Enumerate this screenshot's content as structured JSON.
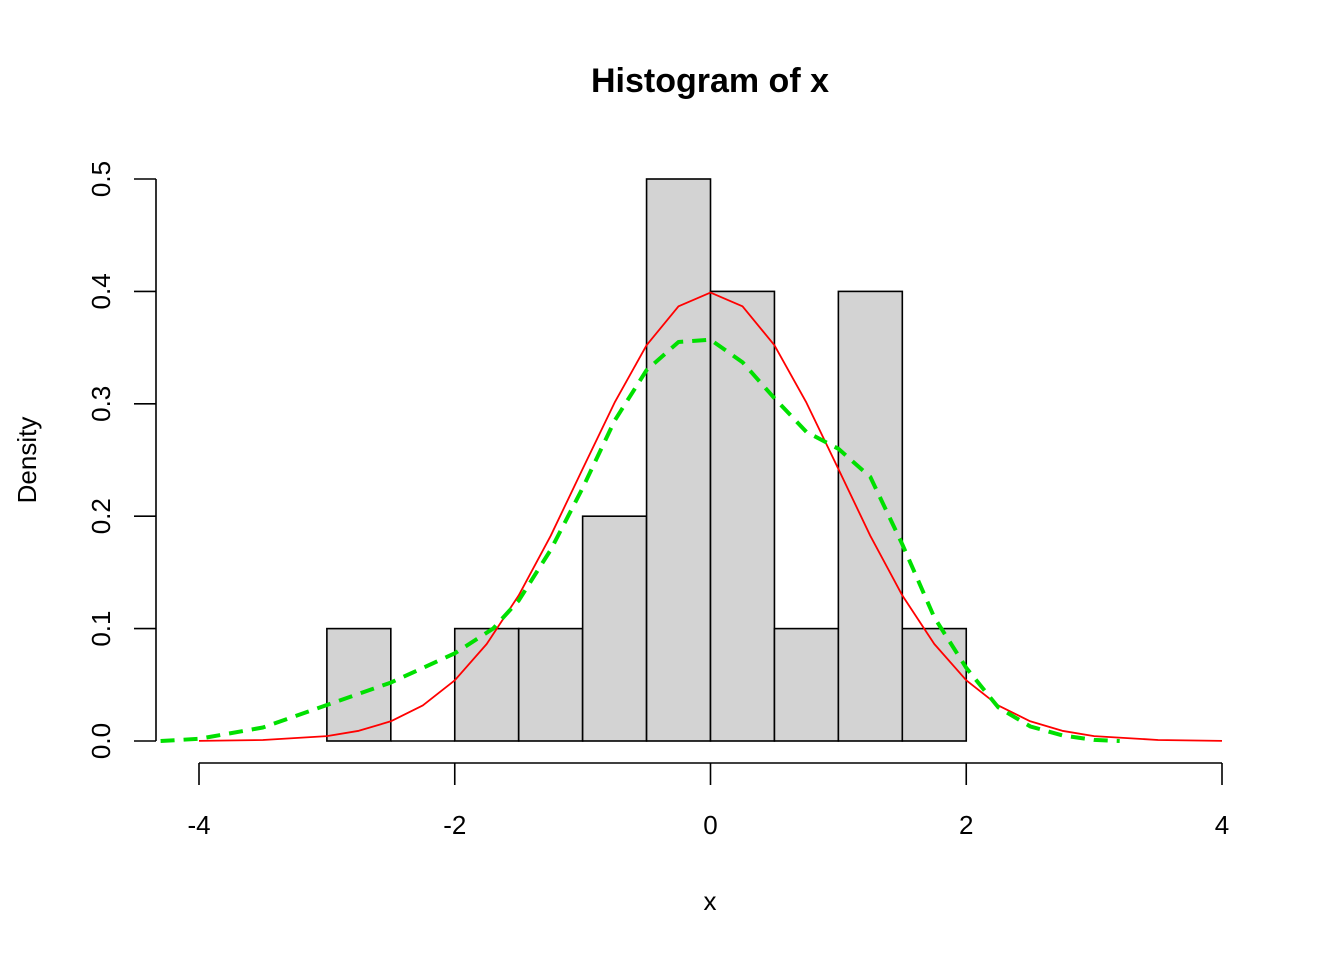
{
  "chart_data": {
    "type": "histogram",
    "title": "Histogram of x",
    "xlabel": "x",
    "ylabel": "Density",
    "xlim": [
      -4,
      4
    ],
    "ylim": [
      0,
      0.5
    ],
    "x_ticks": [
      "-4",
      "-2",
      "0",
      "2",
      "4"
    ],
    "y_ticks": [
      "0.0",
      "0.1",
      "0.2",
      "0.3",
      "0.4",
      "0.5"
    ],
    "grid": false,
    "bar_color": "#d3d3d3",
    "bar_edge_color": "#000000",
    "bins": [
      {
        "from": -3.0,
        "to": -2.5,
        "density": 0.1
      },
      {
        "from": -2.5,
        "to": -2.0,
        "density": 0.0
      },
      {
        "from": -2.0,
        "to": -1.5,
        "density": 0.1
      },
      {
        "from": -1.5,
        "to": -1.0,
        "density": 0.1
      },
      {
        "from": -1.0,
        "to": -0.5,
        "density": 0.2
      },
      {
        "from": -0.5,
        "to": 0.0,
        "density": 0.5
      },
      {
        "from": 0.0,
        "to": 0.5,
        "density": 0.4
      },
      {
        "from": 0.5,
        "to": 1.0,
        "density": 0.1
      },
      {
        "from": 1.0,
        "to": 1.5,
        "density": 0.4
      },
      {
        "from": 1.5,
        "to": 2.0,
        "density": 0.1
      }
    ],
    "series": [
      {
        "style": "solid",
        "color": "#ff0000",
        "x": [
          -4.0,
          -3.5,
          -3.0,
          -2.75,
          -2.5,
          -2.25,
          -2.0,
          -1.75,
          -1.5,
          -1.25,
          -1.0,
          -0.75,
          -0.5,
          -0.25,
          0.0,
          0.25,
          0.5,
          0.75,
          1.0,
          1.25,
          1.5,
          1.75,
          2.0,
          2.25,
          2.5,
          2.75,
          3.0,
          3.5,
          4.0
        ],
        "y": [
          0.0001,
          0.0009,
          0.0044,
          0.0091,
          0.0175,
          0.0317,
          0.054,
          0.0863,
          0.1295,
          0.1826,
          0.242,
          0.3011,
          0.3521,
          0.3867,
          0.3989,
          0.3867,
          0.3521,
          0.3011,
          0.242,
          0.1826,
          0.1295,
          0.0863,
          0.054,
          0.0317,
          0.0175,
          0.0091,
          0.0044,
          0.0009,
          0.0001
        ]
      },
      {
        "style": "dashed",
        "color": "#00e000",
        "x": [
          -4.3,
          -4.0,
          -3.5,
          -3.0,
          -2.5,
          -2.0,
          -1.7,
          -1.5,
          -1.25,
          -1.0,
          -0.75,
          -0.5,
          -0.25,
          0.0,
          0.25,
          0.5,
          0.75,
          1.0,
          1.25,
          1.5,
          1.75,
          2.0,
          2.25,
          2.5,
          2.75,
          3.0,
          3.2
        ],
        "y": [
          0.0,
          0.002,
          0.012,
          0.032,
          0.052,
          0.078,
          0.1,
          0.125,
          0.17,
          0.225,
          0.285,
          0.33,
          0.355,
          0.357,
          0.337,
          0.305,
          0.275,
          0.26,
          0.235,
          0.175,
          0.11,
          0.065,
          0.03,
          0.013,
          0.005,
          0.001,
          0.0
        ]
      }
    ]
  }
}
